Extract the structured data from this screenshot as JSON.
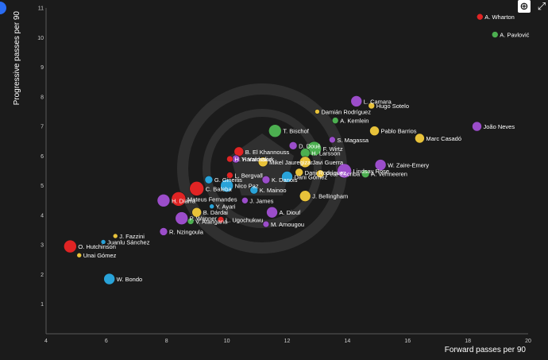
{
  "toolbar": {
    "zoom_label": "⊕",
    "expand_label": "⤢"
  },
  "colors": {
    "background": "#1b1b1b",
    "axis": "#5a5a5a",
    "text": "#ffffff"
  },
  "chart_data": {
    "type": "scatter",
    "xlabel": "Forward passes per 90",
    "ylabel": "Progressive passes per 90",
    "xlim": [
      4,
      20
    ],
    "ylim": [
      0,
      11
    ],
    "xticks": [
      4,
      6,
      8,
      10,
      12,
      14,
      16,
      18,
      20
    ],
    "yticks": [
      1,
      2,
      3,
      4,
      5,
      6,
      7,
      8,
      9,
      10,
      11
    ],
    "grid": false,
    "points": [
      {
        "name": "A. Wharton",
        "x": 18.4,
        "y": 10.7,
        "r": 4,
        "color": "#e02424"
      },
      {
        "name": "A. Pavlović",
        "x": 18.9,
        "y": 10.1,
        "r": 4,
        "color": "#4caf50"
      },
      {
        "name": "L. Camara",
        "x": 14.3,
        "y": 7.85,
        "r": 7,
        "color": "#9b4dca"
      },
      {
        "name": "Hugo Sotelo",
        "x": 14.8,
        "y": 7.7,
        "r": 4,
        "color": "#e8c23a"
      },
      {
        "name": "Damián Rodríguez",
        "x": 13.0,
        "y": 7.5,
        "r": 3,
        "color": "#e8c23a"
      },
      {
        "name": "A. Kemlein",
        "x": 13.6,
        "y": 7.2,
        "r": 4,
        "color": "#4caf50"
      },
      {
        "name": "João Neves",
        "x": 18.3,
        "y": 7.0,
        "r": 6,
        "color": "#9b4dca"
      },
      {
        "name": "Pablo Barrios",
        "x": 14.9,
        "y": 6.85,
        "r": 6,
        "color": "#e8c23a"
      },
      {
        "name": "Marc Casadó",
        "x": 16.4,
        "y": 6.6,
        "r": 6,
        "color": "#e8c23a"
      },
      {
        "name": "T. Bischof",
        "x": 11.6,
        "y": 6.85,
        "r": 8,
        "color": "#4caf50"
      },
      {
        "name": "S. Magassa",
        "x": 13.5,
        "y": 6.55,
        "r": 4,
        "color": "#9b4dca"
      },
      {
        "name": "D. Doué",
        "x": 12.2,
        "y": 6.35,
        "r": 5,
        "color": "#9b4dca"
      },
      {
        "name": "F. Wirtz",
        "x": 12.9,
        "y": 6.25,
        "r": 9,
        "color": "#4caf50"
      },
      {
        "name": "B. El Khannouss",
        "x": 10.4,
        "y": 6.15,
        "r": 6,
        "color": "#e02424"
      },
      {
        "name": "H. Larsson",
        "x": 12.6,
        "y": 6.1,
        "r": 6,
        "color": "#4caf50"
      },
      {
        "name": "Y. Yarmoliuk",
        "x": 10.3,
        "y": 5.9,
        "r": 5,
        "color": "#9b4dca"
      },
      {
        "name": "H. Haraldsson",
        "x": 10.1,
        "y": 5.9,
        "r": 4,
        "color": "#e02424"
      },
      {
        "name": "Mikel Jauregizar",
        "x": 11.2,
        "y": 5.8,
        "r": 6,
        "color": "#e8c23a"
      },
      {
        "name": "Javi Guerra",
        "x": 12.6,
        "y": 5.8,
        "r": 7,
        "color": "#e8c23a"
      },
      {
        "name": "W. Zaire-Emery",
        "x": 15.1,
        "y": 5.7,
        "r": 7,
        "color": "#9b4dca"
      },
      {
        "name": "A. Vermeeren",
        "x": 14.6,
        "y": 5.4,
        "r": 5,
        "color": "#4caf50"
      },
      {
        "name": "Dani Rodríguez",
        "x": 12.4,
        "y": 5.45,
        "r": 5,
        "color": "#e8c23a"
      },
      {
        "name": "Pere Escriba",
        "x": 13.1,
        "y": 5.4,
        "r": 5,
        "color": "#e8c23a"
      },
      {
        "name": "Lindsay Rose",
        "x": 13.9,
        "y": 5.5,
        "r": 9,
        "color": "#9b4dca"
      },
      {
        "name": "L. Bergvall",
        "x": 10.1,
        "y": 5.35,
        "r": 4,
        "color": "#e02424"
      },
      {
        "name": "K. Danois",
        "x": 11.3,
        "y": 5.2,
        "r": 5,
        "color": "#9b4dca"
      },
      {
        "name": "Dani Gómez",
        "x": 12.0,
        "y": 5.3,
        "r": 7,
        "color": "#29a3d9"
      },
      {
        "name": "G. Gineitis",
        "x": 9.4,
        "y": 5.2,
        "r": 5,
        "color": "#29a3d9"
      },
      {
        "name": "Nico Paz",
        "x": 10.0,
        "y": 5.0,
        "r": 8,
        "color": "#29a3d9"
      },
      {
        "name": "C. Baleba",
        "x": 9.0,
        "y": 4.9,
        "r": 9,
        "color": "#e02424"
      },
      {
        "name": "K. Mainoo",
        "x": 10.9,
        "y": 4.85,
        "r": 5,
        "color": "#29a3d9"
      },
      {
        "name": "J. Bellingham",
        "x": 12.6,
        "y": 4.65,
        "r": 7,
        "color": "#e8c23a"
      },
      {
        "name": "Mateus Fernandes",
        "x": 8.4,
        "y": 4.55,
        "r": 9,
        "color": "#e02424"
      },
      {
        "name": "H. Diarra",
        "x": 7.9,
        "y": 4.5,
        "r": 8,
        "color": "#9b4dca"
      },
      {
        "name": "J. James",
        "x": 10.6,
        "y": 4.5,
        "r": 4,
        "color": "#9b4dca"
      },
      {
        "name": "Y. Ayari",
        "x": 9.5,
        "y": 4.3,
        "r": 3,
        "color": "#29a3d9"
      },
      {
        "name": "B. Dárdai",
        "x": 9.0,
        "y": 4.1,
        "r": 6,
        "color": "#e8c23a"
      },
      {
        "name": "A. Diouf",
        "x": 11.5,
        "y": 4.1,
        "r": 7,
        "color": "#9b4dca"
      },
      {
        "name": "P. Wanner",
        "x": 8.5,
        "y": 3.9,
        "r": 8,
        "color": "#9b4dca"
      },
      {
        "name": "V. Atangana",
        "x": 8.8,
        "y": 3.8,
        "r": 4,
        "color": "#4caf50"
      },
      {
        "name": "L. Ugochukwu",
        "x": 9.8,
        "y": 3.85,
        "r": 4,
        "color": "#e02424"
      },
      {
        "name": "M. Amougou",
        "x": 11.3,
        "y": 3.7,
        "r": 4,
        "color": "#9b4dca"
      },
      {
        "name": "R. Nzingoula",
        "x": 7.9,
        "y": 3.45,
        "r": 5,
        "color": "#9b4dca"
      },
      {
        "name": "J. Fazzini",
        "x": 6.3,
        "y": 3.3,
        "r": 3,
        "color": "#e8c23a"
      },
      {
        "name": "Juanlu Sánchez",
        "x": 5.9,
        "y": 3.1,
        "r": 3,
        "color": "#29a3d9"
      },
      {
        "name": "O. Hutchinson",
        "x": 4.8,
        "y": 2.95,
        "r": 8,
        "color": "#e02424"
      },
      {
        "name": "Unai Gómez",
        "x": 5.1,
        "y": 2.65,
        "r": 3,
        "color": "#e8c23a"
      },
      {
        "name": "W. Bondo",
        "x": 6.1,
        "y": 1.85,
        "r": 7,
        "color": "#29a3d9"
      }
    ]
  }
}
